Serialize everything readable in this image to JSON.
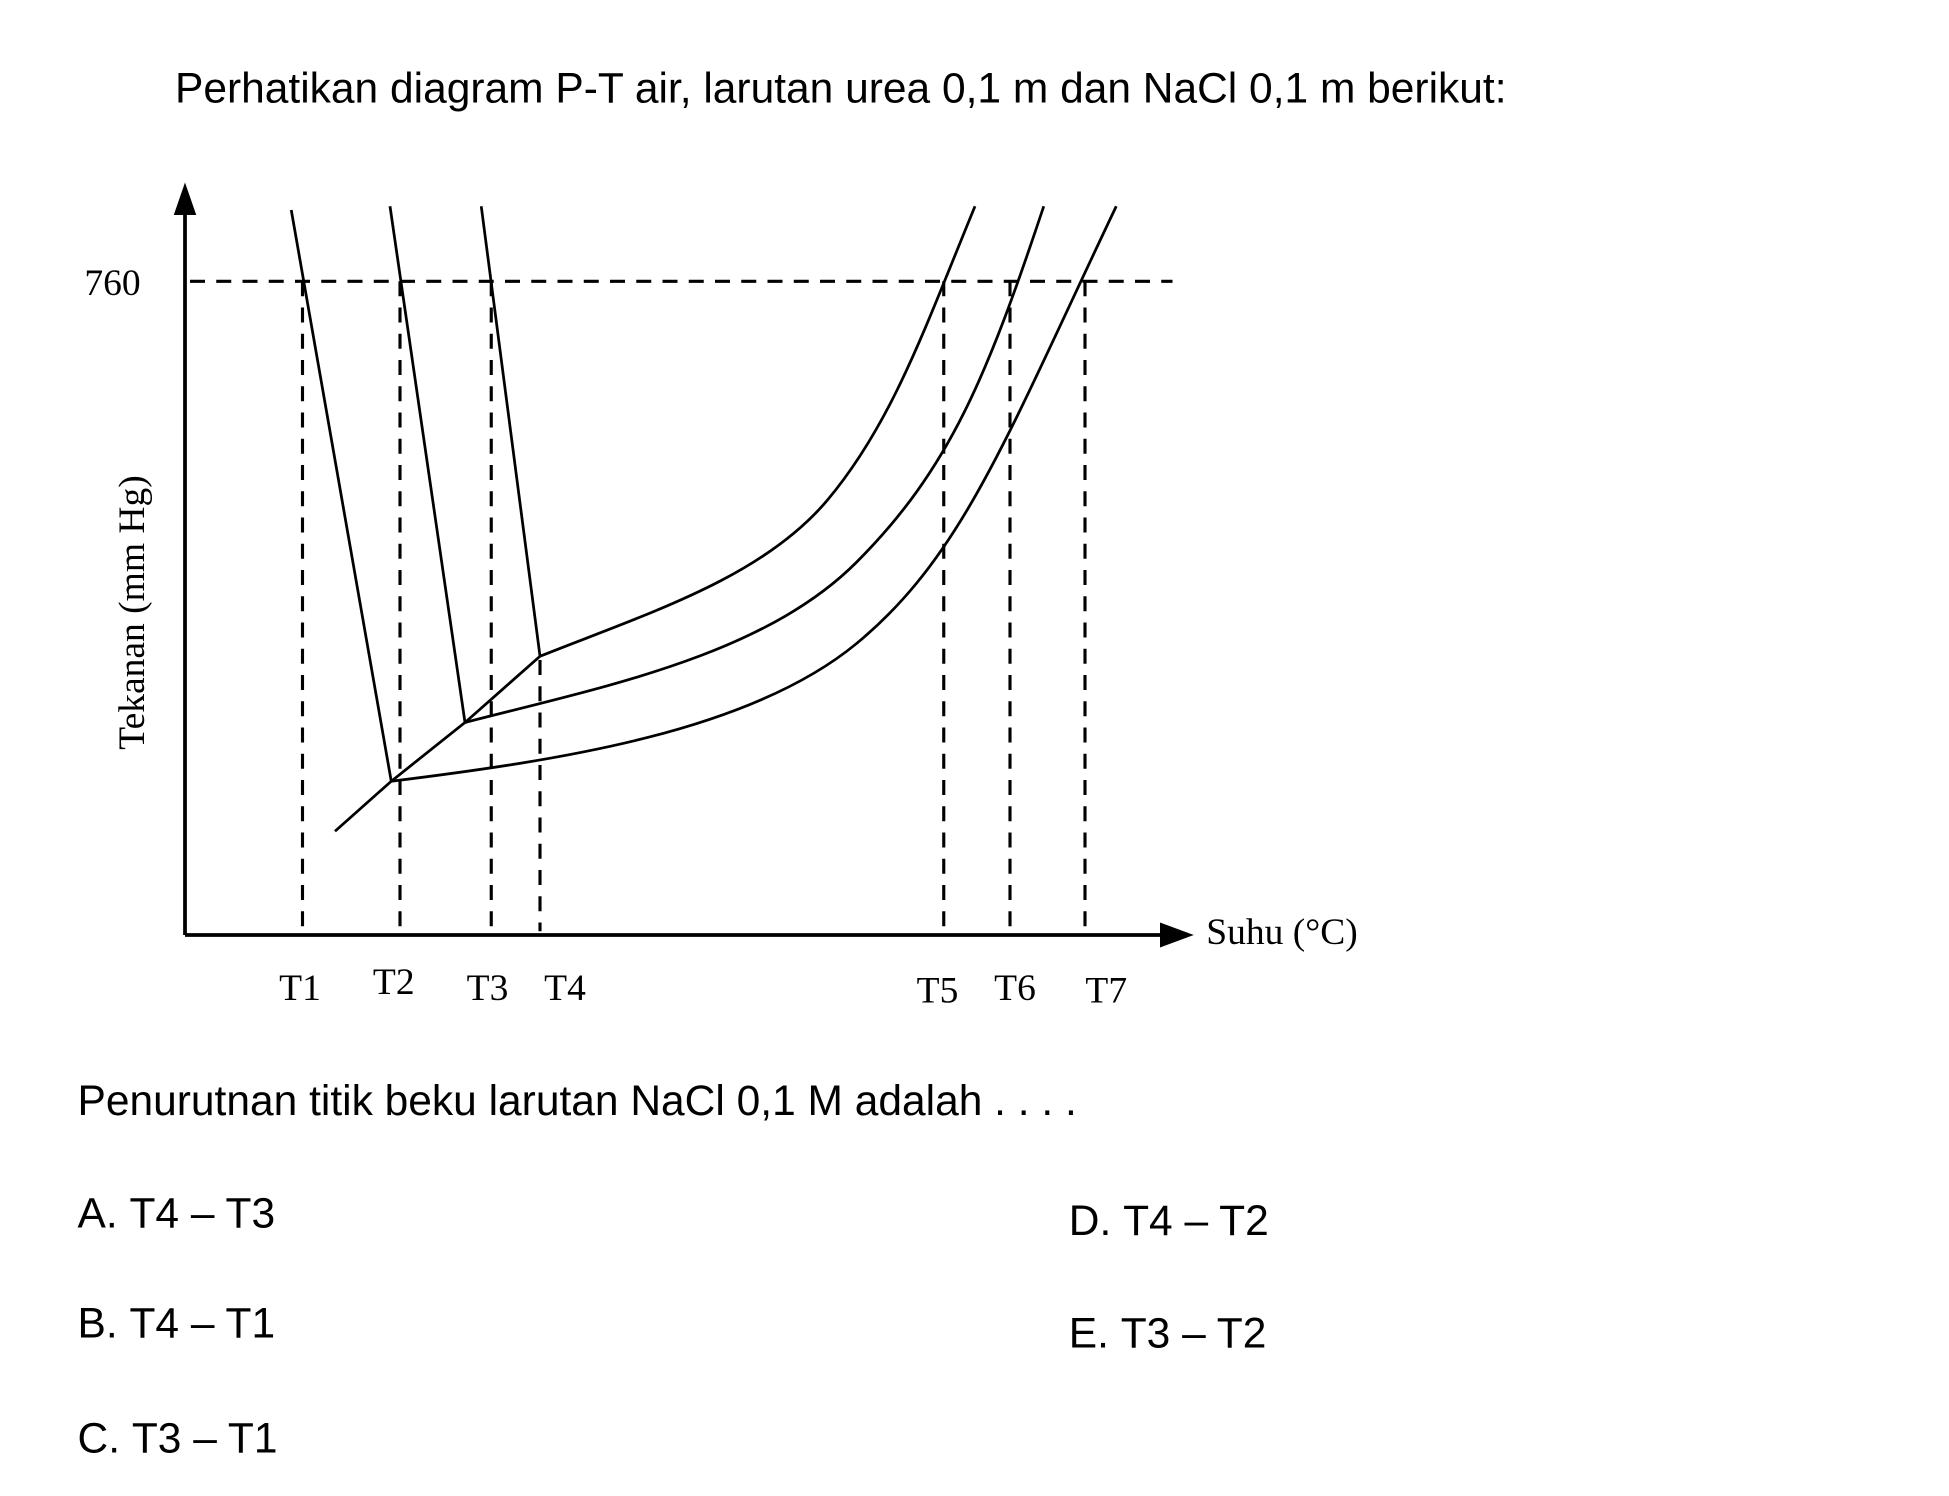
{
  "question": {
    "intro": "Perhatikan diagram P-T air, larutan urea 0,1 m dan NaCl 0,1 m berikut:",
    "prompt": "Penurutnan titik beku larutan NaCl 0,1 M adalah . . . .",
    "options": [
      {
        "letter": "A.",
        "text": "T4 – T3"
      },
      {
        "letter": "B.",
        "text": "T4 – T1"
      },
      {
        "letter": "C.",
        "text": "T3 – T1"
      },
      {
        "letter": "D.",
        "text": "T4 – T2"
      },
      {
        "letter": "E.",
        "text": "T3 – T2"
      }
    ]
  },
  "diagram": {
    "y_label": "Tekanan (mm Hg)",
    "x_label": "Suhu (°C)",
    "pressure_label": "760",
    "temperature_labels": [
      "T1",
      "T2",
      "T3",
      "T4",
      "T5",
      "T6",
      "T7"
    ]
  }
}
